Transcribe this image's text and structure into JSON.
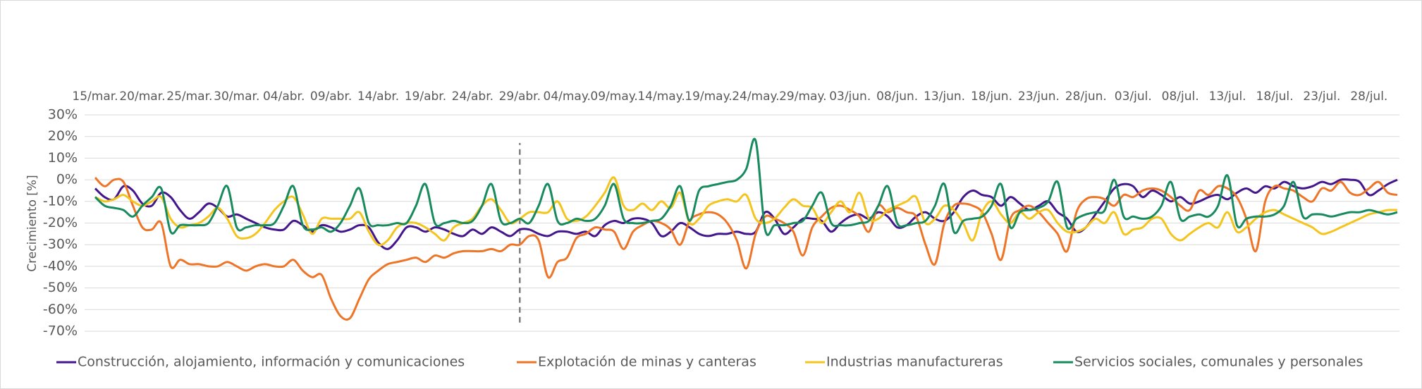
{
  "chart_data": {
    "type": "line",
    "ylabel": "Crecimiento [%]",
    "categories": [
      "15/mar.",
      null,
      null,
      null,
      null,
      "20/mar.",
      null,
      null,
      null,
      null,
      "25/mar.",
      null,
      null,
      null,
      null,
      "30/mar.",
      null,
      null,
      null,
      null,
      "04/abr.",
      null,
      null,
      null,
      null,
      "09/abr.",
      null,
      null,
      null,
      null,
      "14/abr.",
      null,
      null,
      null,
      null,
      "19/abr.",
      null,
      null,
      null,
      null,
      "24/abr.",
      null,
      null,
      null,
      null,
      "29/abr.",
      null,
      null,
      null,
      null,
      "04/may.",
      null,
      null,
      null,
      null,
      "09/may.",
      null,
      null,
      null,
      null,
      "14/may.",
      null,
      null,
      null,
      null,
      "19/may.",
      null,
      null,
      null,
      null,
      "24/may.",
      null,
      null,
      null,
      null,
      "29/may.",
      null,
      null,
      null,
      null,
      "03/jun.",
      null,
      null,
      null,
      null,
      "08/jun.",
      null,
      null,
      null,
      null,
      "13/jun.",
      null,
      null,
      null,
      null,
      "18/jun.",
      null,
      null,
      null,
      null,
      "23/jun.",
      null,
      null,
      null,
      null,
      "28/jun.",
      null,
      null,
      null,
      null,
      "03/jul.",
      null,
      null,
      null,
      null,
      "08/jul.",
      null,
      null,
      null,
      null,
      "13/jul.",
      null,
      null,
      null,
      null,
      "18/jul.",
      null,
      null,
      null,
      null,
      "23/jul.",
      null,
      null,
      null,
      null,
      "28/jul.",
      null,
      null,
      null
    ],
    "ylim": [
      -70,
      30
    ],
    "yticks": [
      {
        "value": 30,
        "label": "30%"
      },
      {
        "value": 20,
        "label": "20%"
      },
      {
        "value": 10,
        "label": "10%"
      },
      {
        "value": 0,
        "label": "0%"
      },
      {
        "value": -10,
        "label": "-10%"
      },
      {
        "value": -20,
        "label": "-20%"
      },
      {
        "value": -30,
        "label": "-30%"
      },
      {
        "value": -40,
        "label": "-40%"
      },
      {
        "value": -50,
        "label": "-50%"
      },
      {
        "value": -60,
        "label": "-60%"
      },
      {
        "value": -70,
        "label": "-70%"
      }
    ],
    "grid": true,
    "legend": "bottom",
    "vline": {
      "x": "29/abr.",
      "from": -66,
      "to": 17
    },
    "series": [
      {
        "name": "Construcción, alojamiento, información y comunicaciones",
        "color": "#44168c",
        "values": [
          -4,
          -8,
          -9,
          -3,
          -5,
          -11,
          -12,
          -6,
          -8,
          -14,
          -18,
          -15,
          -11,
          -13,
          -17,
          -16,
          -18,
          -20,
          -22,
          -23,
          -23,
          -19,
          -21,
          -24,
          -21,
          -22,
          -24,
          -23,
          -21,
          -22,
          -29,
          -32,
          -28,
          -22,
          -22,
          -24,
          -22,
          -23,
          -25,
          -26,
          -23,
          -25,
          -22,
          -24,
          -26,
          -23,
          -23,
          -25,
          -26,
          -24,
          -24,
          -25,
          -24,
          -26,
          -21,
          -19,
          -20,
          -18,
          -18,
          -20,
          -26,
          -24,
          -20,
          -22,
          -25,
          -26,
          -25,
          -25,
          -24,
          -25,
          -24,
          -15,
          -18,
          -25,
          -22,
          -18,
          -18,
          -19,
          -24,
          -20,
          -17,
          -16,
          -18,
          -15,
          -17,
          -22,
          -21,
          -17,
          -15,
          -18,
          -19,
          -15,
          -8,
          -5,
          -7,
          -8,
          -12,
          -8,
          -11,
          -14,
          -12,
          -10,
          -15,
          -18,
          -24,
          -22,
          -16,
          -10,
          -4,
          -2,
          -3,
          -8,
          -5,
          -7,
          -10,
          -8,
          -11,
          -10,
          -8,
          -7,
          -9,
          -6,
          -4,
          -6,
          -3,
          -4,
          -1,
          -3,
          -4,
          -3,
          -1,
          -2,
          0,
          0,
          -1,
          -7,
          -5,
          -2,
          0
        ]
      },
      {
        "name": "Explotación de minas y canteras",
        "color": "#ee7527",
        "values": [
          1,
          -3,
          0,
          -1,
          -12,
          -22,
          -23,
          -20,
          -40,
          -37,
          -39,
          -39,
          -40,
          -40,
          -38,
          -40,
          -42,
          -40,
          -39,
          -40,
          -40,
          -37,
          -42,
          -45,
          -44,
          -55,
          -63,
          -64,
          -55,
          -46,
          -42,
          -39,
          -38,
          -37,
          -36,
          -38,
          -35,
          -36,
          -34,
          -33,
          -33,
          -33,
          -32,
          -33,
          -30,
          -30,
          -26,
          -28,
          -45,
          -38,
          -36,
          -27,
          -25,
          -22,
          -23,
          -24,
          -32,
          -24,
          -21,
          -19,
          -20,
          -23,
          -30,
          -19,
          -16,
          -15,
          -16,
          -20,
          -28,
          -41,
          -25,
          -17,
          -18,
          -20,
          -24,
          -35,
          -22,
          -17,
          -13,
          -12,
          -14,
          -17,
          -24,
          -12,
          -15,
          -13,
          -15,
          -17,
          -30,
          -39,
          -20,
          -12,
          -11,
          -12,
          -15,
          -25,
          -37,
          -18,
          -14,
          -12,
          -15,
          -20,
          -25,
          -33,
          -15,
          -9,
          -8,
          -9,
          -12,
          -7,
          -8,
          -5,
          -4,
          -5,
          -8,
          -12,
          -14,
          -5,
          -7,
          -3,
          -4,
          -8,
          -18,
          -33,
          -10,
          -3,
          -4,
          -5,
          -8,
          -10,
          -4,
          -5,
          -1,
          -6,
          -7,
          -4,
          -1,
          -6,
          -7
        ]
      },
      {
        "name": "Industrias manufactureras",
        "color": "#f4c51e",
        "values": [
          -8,
          -10,
          -9,
          -7,
          -10,
          -12,
          -10,
          -8,
          -18,
          -22,
          -21,
          -20,
          -17,
          -13,
          -18,
          -26,
          -27,
          -25,
          -20,
          -14,
          -10,
          -8,
          -16,
          -25,
          -18,
          -18,
          -18,
          -18,
          -15,
          -24,
          -30,
          -28,
          -22,
          -20,
          -20,
          -22,
          -25,
          -28,
          -22,
          -20,
          -18,
          -12,
          -9,
          -14,
          -20,
          -18,
          -15,
          -15,
          -15,
          -10,
          -18,
          -19,
          -17,
          -12,
          -6,
          1,
          -12,
          -14,
          -11,
          -14,
          -10,
          -13,
          -6,
          -20,
          -18,
          -12,
          -10,
          -9,
          -10,
          -7,
          -18,
          -20,
          -18,
          -13,
          -9,
          -12,
          -13,
          -20,
          -15,
          -10,
          -15,
          -6,
          -18,
          -18,
          -14,
          -12,
          -10,
          -8,
          -20,
          -18,
          -12,
          -14,
          -20,
          -28,
          -15,
          -10,
          -16,
          -20,
          -15,
          -18,
          -15,
          -14,
          -20,
          -24,
          -24,
          -22,
          -18,
          -20,
          -15,
          -25,
          -23,
          -22,
          -18,
          -18,
          -25,
          -28,
          -25,
          -22,
          -20,
          -22,
          -15,
          -24,
          -22,
          -18,
          -15,
          -14,
          -16,
          -18,
          -20,
          -22,
          -25,
          -24,
          -22,
          -20,
          -18,
          -16,
          -15,
          -14,
          -14
        ]
      },
      {
        "name": "Servicios sociales, comunales y personales",
        "color": "#178a5e",
        "values": [
          -8,
          -12,
          -13,
          -14,
          -17,
          -12,
          -8,
          -4,
          -24,
          -21,
          -21,
          -21,
          -20,
          -12,
          -3,
          -22,
          -22,
          -21,
          -21,
          -20,
          -12,
          -3,
          -21,
          -23,
          -22,
          -24,
          -20,
          -12,
          -4,
          -20,
          -21,
          -21,
          -20,
          -20,
          -12,
          -2,
          -20,
          -20,
          -19,
          -20,
          -19,
          -12,
          -2,
          -19,
          -20,
          -18,
          -20,
          -12,
          -2,
          -19,
          -20,
          -18,
          -19,
          -18,
          -12,
          -2,
          -18,
          -20,
          -20,
          -19,
          -18,
          -12,
          -3,
          -19,
          -5,
          -3,
          -2,
          -1,
          0,
          5,
          18,
          -23,
          -21,
          -21,
          -20,
          -19,
          -12,
          -6,
          -20,
          -21,
          -21,
          -20,
          -19,
          -12,
          -3,
          -20,
          -21,
          -20,
          -19,
          -12,
          -2,
          -24,
          -19,
          -18,
          -17,
          -12,
          -2,
          -22,
          -15,
          -14,
          -13,
          -10,
          -1,
          -22,
          -18,
          -16,
          -15,
          -14,
          0,
          -17,
          -17,
          -18,
          -17,
          -12,
          -1,
          -18,
          -17,
          -16,
          -17,
          -12,
          2,
          -21,
          -18,
          -17,
          -17,
          -16,
          -12,
          -1,
          -17,
          -16,
          -16,
          -17,
          -16,
          -15,
          -15,
          -14,
          -15,
          -16,
          -15
        ]
      }
    ]
  }
}
